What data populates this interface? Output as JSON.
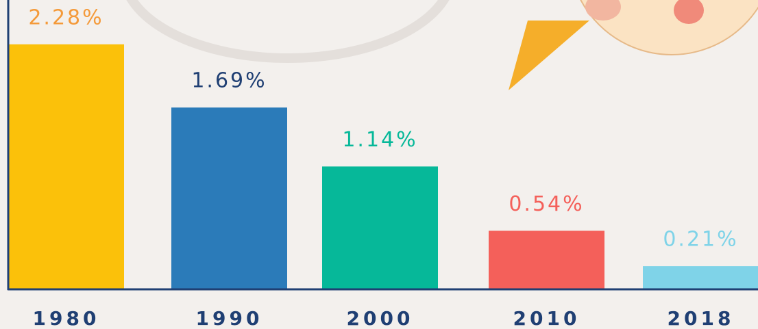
{
  "chart_data": {
    "type": "bar",
    "categories": [
      "1980",
      "1990",
      "2000",
      "2010",
      "2018"
    ],
    "values": [
      2.28,
      1.69,
      1.14,
      0.54,
      0.21
    ],
    "value_labels": [
      "2.28%",
      "1.69%",
      "1.14%",
      "0.54%",
      "0.21%"
    ],
    "colors": [
      "#fbc10a",
      "#2b7bb9",
      "#06b899",
      "#f4605a",
      "#7fd3e8"
    ],
    "label_colors": [
      "#f49a3a",
      "#1f3f73",
      "#06b899",
      "#f4605a",
      "#7fd3e8"
    ],
    "ylim": [
      0,
      2.4
    ]
  }
}
